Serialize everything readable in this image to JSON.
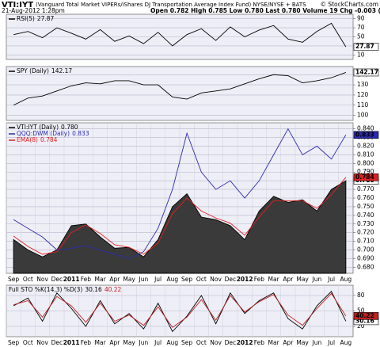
{
  "header": {
    "symbol": "VTI:IYT",
    "description": "(Vanguard Total Market VIPERs/iShares DJ Transportation Average Index Fund) NYSE/NYSE + BATS",
    "copyright": "© StockCharts.com",
    "date": "21-Aug-2012 1:28pm",
    "quote": "Open 0.782 High 0.785 Low 0.780 Last 0.780 Volume 19 Chg -0.003 (-0.34%)"
  },
  "chart_data": [
    {
      "type": "line",
      "ylim": [
        0,
        100
      ],
      "yticks": [
        10,
        30,
        50,
        70,
        90
      ],
      "grid": true,
      "series": [
        {
          "name": "RSI(5)",
          "color": "#000000",
          "values": [
            55,
            62,
            48,
            70,
            58,
            45,
            66,
            40,
            52,
            35,
            60,
            30,
            55,
            68,
            42,
            72,
            50,
            65,
            75,
            45,
            38,
            62,
            80,
            27.87
          ]
        }
      ]
    },
    {
      "type": "line",
      "ylim": [
        95,
        148
      ],
      "yticks": [
        100,
        110,
        120,
        130,
        140
      ],
      "grid": true,
      "series": [
        {
          "name": "SPY (Daily)",
          "color": "#000000",
          "values": [
            110,
            117,
            119,
            124,
            129,
            132,
            131,
            134,
            134,
            130,
            130,
            118,
            116,
            122,
            124,
            126,
            131,
            136,
            140,
            139,
            132,
            134,
            137,
            142.17
          ]
        }
      ]
    },
    {
      "type": "line",
      "ylim": [
        0.673,
        0.847
      ],
      "grid": true,
      "yticks": [
        {
          "value": 0.68,
          "label": "0.680"
        },
        {
          "value": 0.69,
          "label": "0.690"
        },
        {
          "value": 0.7,
          "label": "0.700"
        },
        {
          "value": 0.71,
          "label": "0.710"
        },
        {
          "value": 0.72,
          "label": "0.720"
        },
        {
          "value": 0.73,
          "label": "0.730"
        },
        {
          "value": 0.74,
          "label": "0.740"
        },
        {
          "value": 0.75,
          "label": "0.750"
        },
        {
          "value": 0.76,
          "label": "0.760"
        },
        {
          "value": 0.77,
          "label": "0.770"
        },
        {
          "value": 0.78,
          "label": "0.780"
        },
        {
          "value": 0.79,
          "label": "0.790"
        },
        {
          "value": 0.8,
          "label": "0.800"
        },
        {
          "value": 0.81,
          "label": "0.810"
        },
        {
          "value": 0.82,
          "label": "0.820"
        },
        {
          "value": 0.83,
          "label": "0.830"
        },
        {
          "value": 0.84,
          "label": "0.840"
        }
      ],
      "categories": [
        "Sep",
        "Oct",
        "Nov",
        "Dec",
        "2011",
        "Feb",
        "Mar",
        "Apr",
        "May",
        "Jun",
        "Jul",
        "Aug",
        "Sep",
        "Oct",
        "Nov",
        "Dec",
        "2012",
        "Feb",
        "Mar",
        "Apr",
        "May",
        "Jun",
        "Jul",
        "Aug"
      ],
      "series": [
        {
          "name": "VTI:IYT (Daily)",
          "color": "#000000",
          "style": "area",
          "values": [
            0.712,
            0.7,
            0.692,
            0.7,
            0.728,
            0.73,
            0.715,
            0.702,
            0.703,
            0.692,
            0.712,
            0.75,
            0.765,
            0.738,
            0.735,
            0.728,
            0.712,
            0.745,
            0.762,
            0.755,
            0.758,
            0.745,
            0.77,
            0.78
          ],
          "value_labels": [
            null,
            null,
            null,
            null,
            null,
            null,
            null,
            null,
            null,
            null,
            null,
            null,
            null,
            null,
            null,
            null,
            null,
            null,
            null,
            null,
            null,
            null,
            null,
            "0.780"
          ]
        },
        {
          "name": "QQQ:DWM (Daily)",
          "color": "#2b2bb0",
          "values": [
            0.735,
            0.725,
            0.715,
            0.7,
            0.702,
            0.705,
            0.7,
            0.695,
            0.69,
            0.698,
            0.725,
            0.77,
            0.835,
            0.79,
            0.77,
            0.78,
            0.76,
            0.78,
            0.81,
            0.84,
            0.81,
            0.82,
            0.805,
            0.833
          ]
        },
        {
          "name": "EMA(8)",
          "color": "#e02020",
          "values": [
            0.716,
            0.704,
            0.695,
            0.698,
            0.72,
            0.729,
            0.719,
            0.706,
            0.703,
            0.695,
            0.708,
            0.742,
            0.76,
            0.745,
            0.737,
            0.731,
            0.717,
            0.738,
            0.757,
            0.757,
            0.757,
            0.748,
            0.764,
            0.784
          ]
        }
      ]
    },
    {
      "type": "line",
      "label": "Full STO %K(14,3) %D(3)",
      "ylim": [
        0,
        100
      ],
      "yticks": [
        20,
        50,
        80
      ],
      "grid": true,
      "categories": [
        "Sep",
        "Oct",
        "Nov",
        "Dec",
        "2011",
        "Feb",
        "Mar",
        "Apr",
        "May",
        "Jun",
        "Jul",
        "Aug",
        "Sep",
        "Oct",
        "Nov",
        "Dec",
        "2012",
        "Feb",
        "Mar",
        "Apr",
        "May",
        "Jun",
        "Jul",
        "Aug"
      ],
      "series": [
        {
          "color": "#000000",
          "values": [
            60,
            75,
            30,
            85,
            55,
            20,
            70,
            25,
            45,
            15,
            65,
            10,
            40,
            80,
            25,
            85,
            45,
            70,
            85,
            35,
            15,
            60,
            88,
            30.16
          ]
        },
        {
          "color": "#c02020",
          "values": [
            62,
            70,
            38,
            78,
            60,
            28,
            65,
            30,
            42,
            22,
            58,
            18,
            38,
            72,
            32,
            80,
            48,
            68,
            82,
            42,
            22,
            55,
            84,
            40.22
          ]
        }
      ]
    }
  ]
}
